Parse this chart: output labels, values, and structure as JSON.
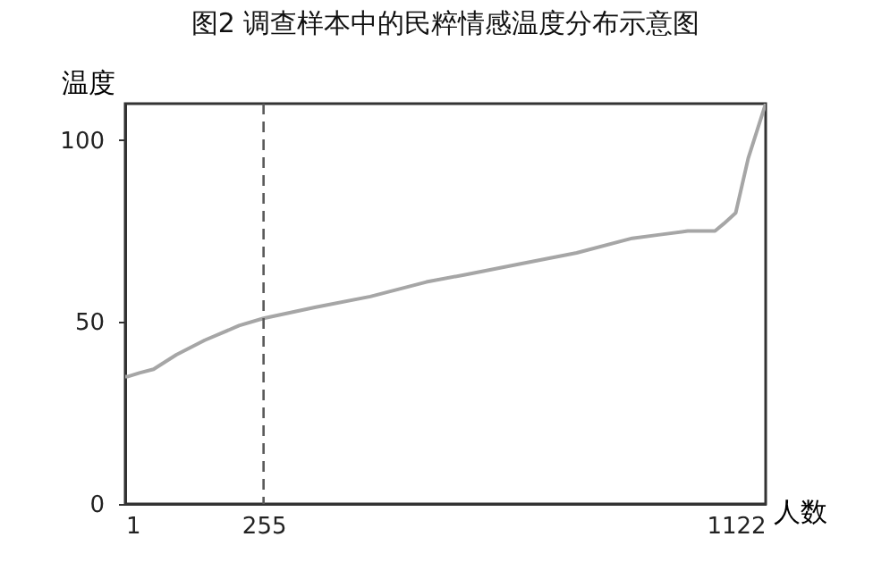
{
  "chart_data": {
    "type": "line",
    "title": "图2 调查样本中的民粹情感温度分布示意图",
    "xlabel": "人数",
    "ylabel": "温度",
    "x": [
      1,
      6,
      27,
      53,
      95,
      147,
      210,
      255,
      349,
      451,
      554,
      625,
      727,
      830,
      932,
      983,
      1034,
      1065,
      1084,
      1100,
      1122,
      1145,
      1177
    ],
    "series": [
      {
        "color": "#a6a6a6",
        "values": [
          35,
          35,
          36,
          37,
          41,
          45,
          49,
          51,
          54,
          57,
          61,
          63,
          66,
          69,
          73,
          74,
          75,
          75,
          75,
          77,
          80,
          95,
          110
        ]
      }
    ],
    "xlim": [
      1,
      1177
    ],
    "ylim": [
      0,
      110
    ],
    "xticks": [
      1,
      255,
      1122
    ],
    "yticks": [
      0,
      50,
      100
    ],
    "grid": false,
    "ref_lines": [
      {
        "axis": "x",
        "value": 255,
        "color": "#595959",
        "line_style": "dashed"
      }
    ]
  }
}
